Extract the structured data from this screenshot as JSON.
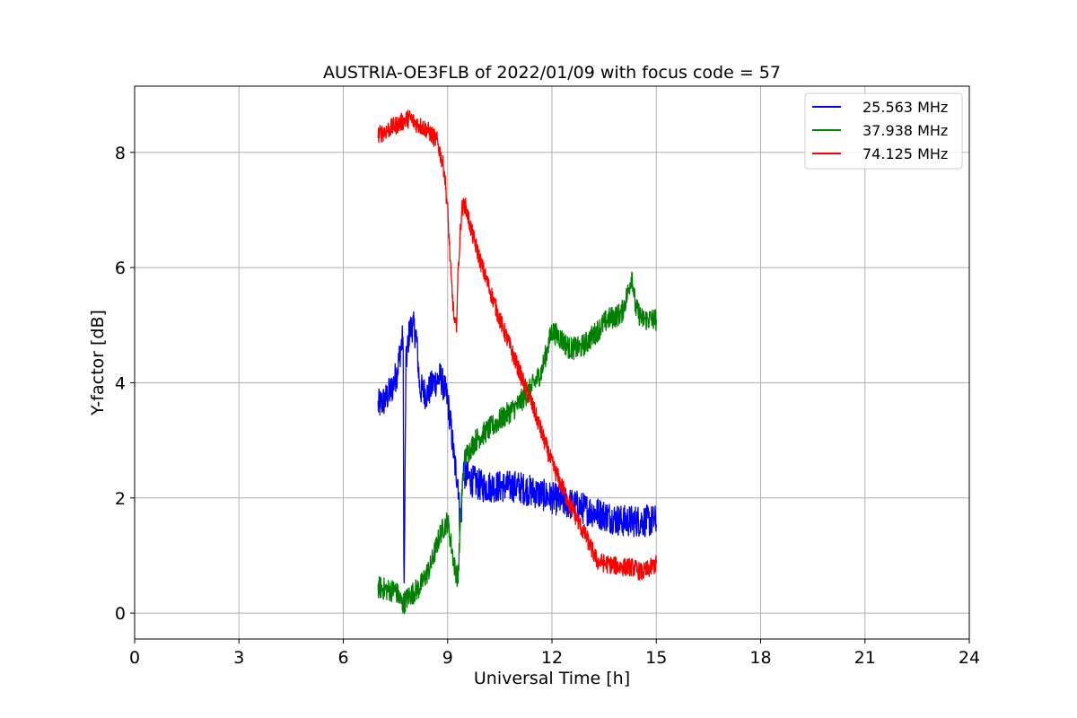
{
  "chart_data": {
    "type": "line",
    "title": "AUSTRIA-OE3FLB of 2022/01/09 with focus code = 57",
    "xlabel": "Universal Time [h]",
    "ylabel": "Y-factor [dB]",
    "xlim": [
      0,
      24
    ],
    "ylim": [
      -0.45,
      9.15
    ],
    "xticks": [
      0,
      3,
      6,
      9,
      12,
      15,
      18,
      21,
      24
    ],
    "yticks": [
      0,
      2,
      4,
      6,
      8
    ],
    "grid": true,
    "legend_position": "top-right",
    "series": [
      {
        "name": "25.563 MHz",
        "color": "#0000ff",
        "noise": 0.28,
        "x": [
          7.0,
          7.2,
          7.4,
          7.55,
          7.65,
          7.72,
          7.74,
          7.75,
          7.8,
          7.9,
          8.0,
          8.1,
          8.2,
          8.4,
          8.6,
          8.8,
          9.0,
          9.1,
          9.2,
          9.3,
          9.35,
          9.4,
          9.45,
          9.5,
          9.7,
          10.0,
          10.5,
          11.0,
          11.5,
          12.0,
          12.5,
          13.0,
          13.5,
          14.0,
          14.5,
          15.0
        ],
        "y": [
          3.6,
          3.7,
          3.9,
          4.2,
          4.6,
          4.8,
          1.2,
          0.3,
          4.3,
          4.9,
          5.0,
          4.8,
          3.9,
          3.8,
          4.0,
          4.1,
          3.7,
          3.2,
          2.6,
          2.3,
          1.6,
          1.8,
          2.6,
          2.4,
          2.3,
          2.2,
          2.2,
          2.2,
          2.1,
          2.0,
          1.9,
          1.8,
          1.7,
          1.6,
          1.6,
          1.6
        ]
      },
      {
        "name": "37.938 MHz",
        "color": "#008000",
        "noise": 0.2,
        "x": [
          7.0,
          7.3,
          7.5,
          7.7,
          7.9,
          8.2,
          8.5,
          8.8,
          9.0,
          9.1,
          9.2,
          9.3,
          9.4,
          9.5,
          9.8,
          10.2,
          10.6,
          11.0,
          11.4,
          11.7,
          12.0,
          12.2,
          12.5,
          12.8,
          13.0,
          13.3,
          13.6,
          14.0,
          14.2,
          14.3,
          14.4,
          14.6,
          15.0
        ],
        "y": [
          0.45,
          0.4,
          0.4,
          0.15,
          0.3,
          0.45,
          0.8,
          1.4,
          1.6,
          1.2,
          0.8,
          0.6,
          2.0,
          2.7,
          3.0,
          3.2,
          3.4,
          3.6,
          3.9,
          4.2,
          4.9,
          4.8,
          4.6,
          4.6,
          4.7,
          4.9,
          5.1,
          5.2,
          5.6,
          5.9,
          5.3,
          5.1,
          5.1
        ]
      },
      {
        "name": "74.125 MHz",
        "color": "#ff0000",
        "noise": 0.16,
        "x": [
          7.0,
          7.3,
          7.6,
          7.9,
          8.1,
          8.4,
          8.7,
          8.9,
          9.0,
          9.1,
          9.2,
          9.25,
          9.3,
          9.4,
          9.5,
          9.7,
          10.0,
          10.5,
          11.0,
          11.5,
          12.0,
          12.5,
          13.0,
          13.3,
          13.6,
          14.0,
          14.3,
          14.6,
          15.0
        ],
        "y": [
          8.3,
          8.4,
          8.5,
          8.6,
          8.5,
          8.4,
          8.2,
          7.7,
          7.0,
          5.8,
          5.0,
          4.95,
          5.9,
          7.0,
          7.1,
          6.6,
          6.0,
          5.1,
          4.3,
          3.5,
          2.6,
          1.9,
          1.3,
          0.9,
          0.85,
          0.8,
          0.8,
          0.7,
          0.85
        ]
      }
    ]
  }
}
